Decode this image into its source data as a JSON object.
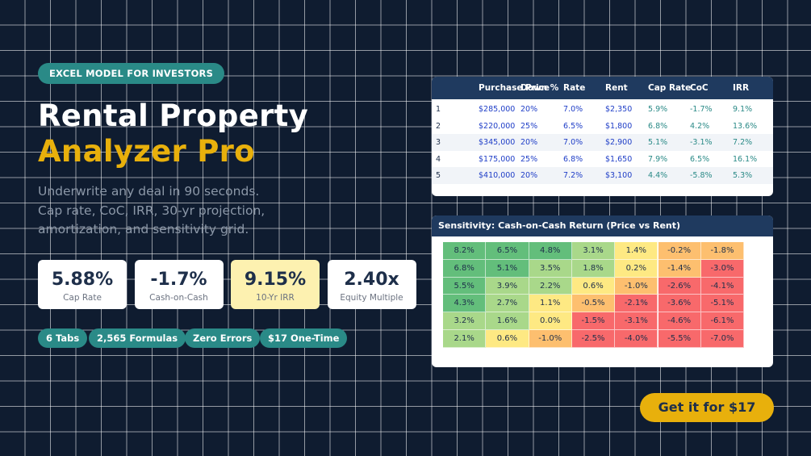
{
  "badge": "EXCEL MODEL FOR INVESTORS",
  "title_line1": "Rental Property",
  "title_line2": "Analyzer Pro",
  "subtitle": [
    "Underwrite any deal in 90 seconds.",
    "Cap rate, CoC, IRR, 30-yr projection,",
    "amortization, and sensitivity grid."
  ],
  "stats": [
    {
      "value": "5.88%",
      "label": "Cap Rate"
    },
    {
      "value": "-1.7%",
      "label": "Cash-on-Cash"
    },
    {
      "value": "9.15%",
      "label": "10-Yr IRR"
    },
    {
      "value": "2.40x",
      "label": "Equity Multiple"
    }
  ],
  "pills": [
    "6 Tabs",
    "2,565 Formulas",
    "Zero Errors",
    "$17 One-Time"
  ],
  "deals_table": {
    "headers": [
      "Purchase Price",
      "Down %",
      "Rate",
      "Rent",
      "Cap Rate",
      "CoC",
      "IRR"
    ],
    "rows": [
      [
        "1",
        "$285,000",
        "20%",
        "7.0%",
        "$2,350",
        "5.9%",
        "-1.7%",
        "9.1%"
      ],
      [
        "2",
        "$220,000",
        "25%",
        "6.5%",
        "$1,800",
        "6.8%",
        "4.2%",
        "13.6%"
      ],
      [
        "3",
        "$345,000",
        "20%",
        "7.0%",
        "$2,900",
        "5.1%",
        "-3.1%",
        "7.2%"
      ],
      [
        "4",
        "$175,000",
        "25%",
        "6.8%",
        "$1,650",
        "7.9%",
        "6.5%",
        "16.1%"
      ],
      [
        "5",
        "$410,000",
        "20%",
        "7.2%",
        "$3,100",
        "4.4%",
        "-5.8%",
        "5.3%"
      ]
    ]
  },
  "sensitivity": {
    "title": "Sensitivity: Cash-on-Cash Return (Price vs Rent)",
    "grid": [
      [
        "8.2%",
        "6.5%",
        "4.8%",
        "3.1%",
        "1.4%",
        "-0.2%",
        "-1.8%"
      ],
      [
        "6.8%",
        "5.1%",
        "3.5%",
        "1.8%",
        "0.2%",
        "-1.4%",
        "-3.0%"
      ],
      [
        "5.5%",
        "3.9%",
        "2.2%",
        "0.6%",
        "-1.0%",
        "-2.6%",
        "-4.1%"
      ],
      [
        "4.3%",
        "2.7%",
        "1.1%",
        "-0.5%",
        "-2.1%",
        "-3.6%",
        "-5.1%"
      ],
      [
        "3.2%",
        "1.6%",
        "0.0%",
        "-1.5%",
        "-3.1%",
        "-4.6%",
        "-6.1%"
      ],
      [
        "2.1%",
        "0.6%",
        "-1.0%",
        "-2.5%",
        "-4.0%",
        "-5.5%",
        "-7.0%"
      ]
    ],
    "colors": {
      "dark_green": "#63be7b",
      "light_green": "#a9d88a",
      "yellow": "#fee983",
      "orange": "#fdbf6f",
      "red": "#f8696b"
    }
  },
  "cta": "Get it for $17",
  "colors": {
    "background": "#0f1c30",
    "teal": "#2a8a87",
    "gold": "#e8b00c",
    "navy_header": "#1f3a5f"
  }
}
